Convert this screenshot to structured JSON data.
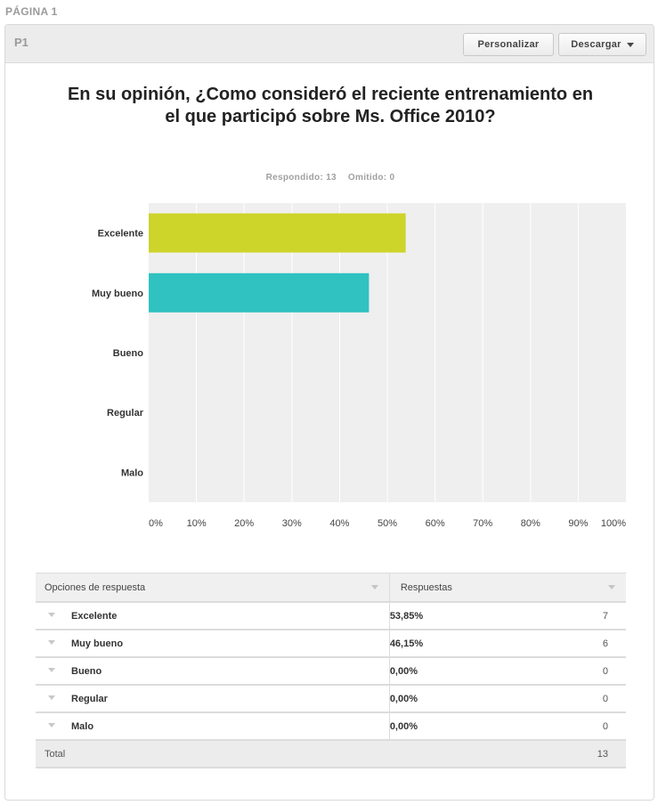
{
  "page_label": "PÁGINA 1",
  "question": {
    "id": "P1",
    "title": "En su opinión, ¿Como consideró el reciente entrenamiento en el que participó sobre Ms. Office 2010?",
    "answered": "Respondido: 13",
    "skipped": "Omitido: 0"
  },
  "toolbar": {
    "customize_label": "Personalizar",
    "download_label": "Descargar"
  },
  "colors": {
    "bar_excelente": "#cdd42a",
    "bar_muy_bueno": "#2fc2c0",
    "plot_bg": "#efefef",
    "grid": "#ffffff"
  },
  "chart_data": {
    "type": "bar",
    "orientation": "horizontal",
    "categories": [
      "Excelente",
      "Muy bueno",
      "Bueno",
      "Regular",
      "Malo"
    ],
    "values": [
      53.85,
      46.15,
      0,
      0,
      0
    ],
    "xlim": [
      0,
      100
    ],
    "x_ticks": [
      "0%",
      "10%",
      "20%",
      "30%",
      "40%",
      "50%",
      "60%",
      "70%",
      "80%",
      "90%",
      "100%"
    ],
    "grid": true,
    "legend": "none"
  },
  "table": {
    "headers": [
      "Opciones de respuesta",
      "Respuestas"
    ],
    "rows": [
      {
        "option": "Excelente",
        "percent": "53,85%",
        "count": "7"
      },
      {
        "option": "Muy bueno",
        "percent": "46,15%",
        "count": "6"
      },
      {
        "option": "Bueno",
        "percent": "0,00%",
        "count": "0"
      },
      {
        "option": "Regular",
        "percent": "0,00%",
        "count": "0"
      },
      {
        "option": "Malo",
        "percent": "0,00%",
        "count": "0"
      }
    ],
    "total_label": "Total",
    "total_value": "13"
  }
}
